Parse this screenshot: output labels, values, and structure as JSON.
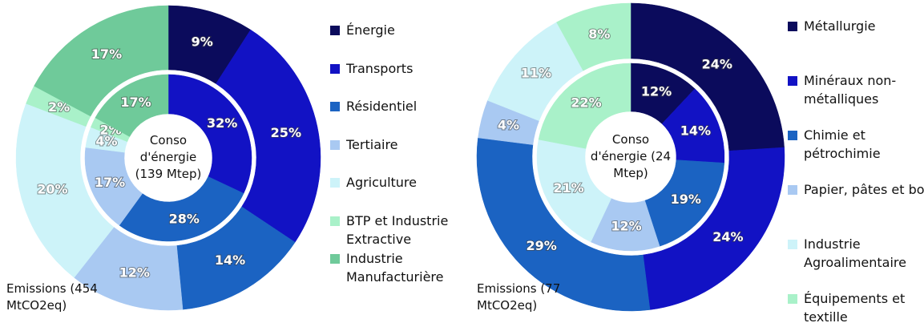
{
  "chart_data": [
    {
      "type": "donut",
      "categories": [
        "Énergie",
        "Transports",
        "Résidentiel",
        "Tertiaire",
        "Agriculture",
        "BTP et Industrie Extractive",
        "Industrie Manufacturière"
      ],
      "colors": [
        "#0b0b5c",
        "#1212c4",
        "#1b63c2",
        "#a9c9f2",
        "#cdf3f9",
        "#a9f1c9",
        "#6fca9a"
      ],
      "series": [
        {
          "name": "Conso d'énergie (139 Mtep)",
          "ring": "inner",
          "values": [
            null,
            32,
            28,
            17,
            4,
            2,
            17
          ],
          "value_labels": [
            null,
            "32%",
            "28%",
            "17%",
            "4%",
            "2%",
            "17%"
          ]
        },
        {
          "name": "Emissions (454 MtCO2eq)",
          "ring": "outer",
          "values": [
            9,
            25,
            14,
            12,
            20,
            2,
            17
          ],
          "value_labels": [
            "9%",
            "25%",
            "14%",
            "12%",
            "20%",
            "2%",
            "17%"
          ]
        }
      ]
    },
    {
      "type": "donut",
      "categories": [
        "Métallurgie",
        "Minéraux non-métalliques",
        "Chimie et pétrochimie",
        "Papier, pâtes et bois",
        "Industrie Agroalimentaire",
        "Équipements et textille"
      ],
      "colors": [
        "#0b0b5c",
        "#1212c4",
        "#1b63c2",
        "#a9c9f2",
        "#cdf3f9",
        "#a9f1c9"
      ],
      "series": [
        {
          "name": "Conso d'énergie (24 Mtep)",
          "ring": "inner",
          "values": [
            12,
            14,
            19,
            12,
            21,
            22
          ],
          "value_labels": [
            "12%",
            "14%",
            "19%",
            "12%",
            "21%",
            "22%"
          ]
        },
        {
          "name": "Emissions (77 MtCO2eq)",
          "ring": "outer",
          "values": [
            24,
            24,
            29,
            4,
            11,
            8
          ],
          "value_labels": [
            "24%",
            "24%",
            "29%",
            "4%",
            "11%",
            "8%"
          ]
        }
      ]
    }
  ]
}
